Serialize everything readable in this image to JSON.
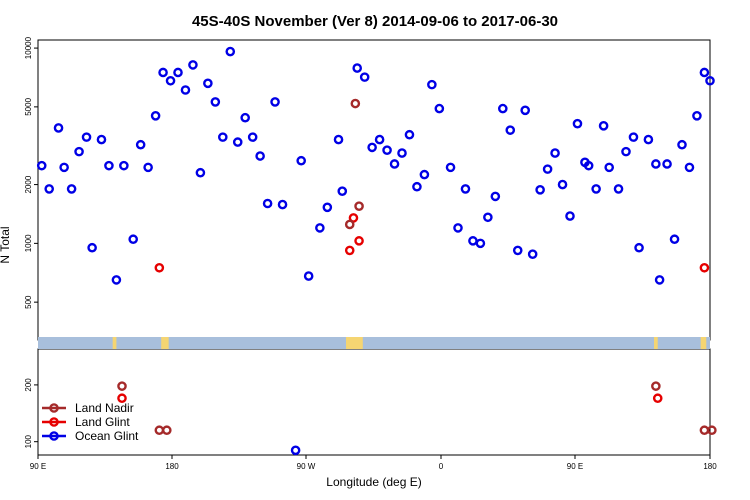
{
  "chart_data": {
    "type": "scatter",
    "title": "45S-40S November (Ver 8)   2014-09-06 to 2017-06-30",
    "xlabel": "Longitude (deg E)",
    "ylabel": "N Total",
    "x_tick_labels": [
      "90 E",
      "180",
      "90 W",
      "0",
      "90 E",
      "180"
    ],
    "xlim": [
      90,
      450
    ],
    "upper_panel": {
      "ylim": [
        320,
        11000
      ],
      "scale": "log",
      "y_tick_labels": [
        "500",
        "1000",
        "2000",
        "5000",
        "10000"
      ],
      "y_ticks": [
        500,
        1000,
        2000,
        5000,
        10000
      ]
    },
    "lower_panel": {
      "ylim": [
        85,
        310
      ],
      "scale": "log",
      "y_tick_labels": [
        "100",
        "200"
      ],
      "y_ticks": [
        100,
        200
      ]
    },
    "land_mask_colors": {
      "ocean": "#a8bfdc",
      "land": "#f5d572"
    },
    "legend": {
      "placement": "bottom-left",
      "items": [
        "Land Nadir",
        "Land Glint",
        "Ocean Glint"
      ]
    },
    "series": [
      {
        "name": "Ocean Glint",
        "color": "#0000e6",
        "panel": "upper",
        "points": [
          [
            92,
            2500
          ],
          [
            96,
            1900
          ],
          [
            101,
            3900
          ],
          [
            104,
            2450
          ],
          [
            108,
            1900
          ],
          [
            112,
            2950
          ],
          [
            116,
            3500
          ],
          [
            119,
            950
          ],
          [
            124,
            3400
          ],
          [
            128,
            2500
          ],
          [
            132,
            650
          ],
          [
            136,
            2500
          ],
          [
            141,
            1050
          ],
          [
            145,
            3200
          ],
          [
            149,
            2450
          ],
          [
            153,
            4500
          ],
          [
            157,
            7500
          ],
          [
            161,
            6800
          ],
          [
            165,
            7500
          ],
          [
            169,
            6100
          ],
          [
            173,
            8200
          ],
          [
            177,
            2300
          ],
          [
            181,
            6600
          ],
          [
            185,
            5300
          ],
          [
            189,
            3500
          ],
          [
            193,
            9600
          ],
          [
            197,
            3300
          ],
          [
            201,
            4400
          ],
          [
            205,
            3500
          ],
          [
            209,
            2800
          ],
          [
            213,
            1600
          ],
          [
            217,
            5300
          ],
          [
            221,
            1580
          ],
          [
            231,
            2650
          ],
          [
            235,
            680
          ],
          [
            241,
            1200
          ],
          [
            245,
            1530
          ],
          [
            251,
            3400
          ],
          [
            253,
            1850
          ],
          [
            261,
            7900
          ],
          [
            265,
            7100
          ],
          [
            269,
            3100
          ],
          [
            273,
            3400
          ],
          [
            277,
            3000
          ],
          [
            281,
            2550
          ],
          [
            285,
            2900
          ],
          [
            289,
            3600
          ],
          [
            293,
            1950
          ],
          [
            297,
            2250
          ],
          [
            301,
            6500
          ],
          [
            305,
            4900
          ],
          [
            311,
            2450
          ],
          [
            315,
            1200
          ],
          [
            319,
            1900
          ],
          [
            323,
            1030
          ],
          [
            327,
            1000
          ],
          [
            331,
            1360
          ],
          [
            335,
            1740
          ],
          [
            339,
            4900
          ],
          [
            343,
            3800
          ],
          [
            347,
            920
          ],
          [
            351,
            4800
          ],
          [
            355,
            880
          ],
          [
            359,
            1880
          ],
          [
            363,
            2400
          ],
          [
            367,
            2900
          ],
          [
            371,
            2000
          ],
          [
            375,
            1380
          ],
          [
            379,
            4100
          ],
          [
            383,
            2600
          ],
          [
            385,
            2500
          ],
          [
            389,
            1900
          ],
          [
            393,
            4000
          ],
          [
            396,
            2450
          ],
          [
            401,
            1900
          ],
          [
            405,
            2950
          ],
          [
            409,
            3500
          ],
          [
            412,
            950
          ],
          [
            417,
            3400
          ],
          [
            421,
            2550
          ],
          [
            423,
            650
          ],
          [
            427,
            2550
          ],
          [
            431,
            1050
          ],
          [
            435,
            3200
          ],
          [
            439,
            2450
          ],
          [
            443,
            4500
          ],
          [
            447,
            7500
          ],
          [
            450,
            6800
          ]
        ]
      },
      {
        "name": "Land Glint",
        "color": "#e60000",
        "panel": "both",
        "points": [
          [
            155,
            750
          ],
          [
            257,
            920
          ],
          [
            259,
            1350
          ],
          [
            262,
            1030
          ],
          [
            135,
            170
          ],
          [
            422,
            170
          ],
          [
            447,
            750
          ]
        ]
      },
      {
        "name": "Land Nadir",
        "color": "#a52a2a",
        "panel": "both",
        "points": [
          [
            257,
            1250
          ],
          [
            260,
            5200
          ],
          [
            262,
            1550
          ],
          [
            135,
            197
          ],
          [
            155,
            115
          ],
          [
            159,
            115
          ],
          [
            421,
            197
          ],
          [
            447,
            115
          ],
          [
            451,
            115
          ]
        ]
      },
      {
        "name": "Ocean Glint",
        "color": "#0000e6",
        "panel": "lower",
        "points": [
          [
            228,
            90
          ]
        ]
      }
    ]
  }
}
